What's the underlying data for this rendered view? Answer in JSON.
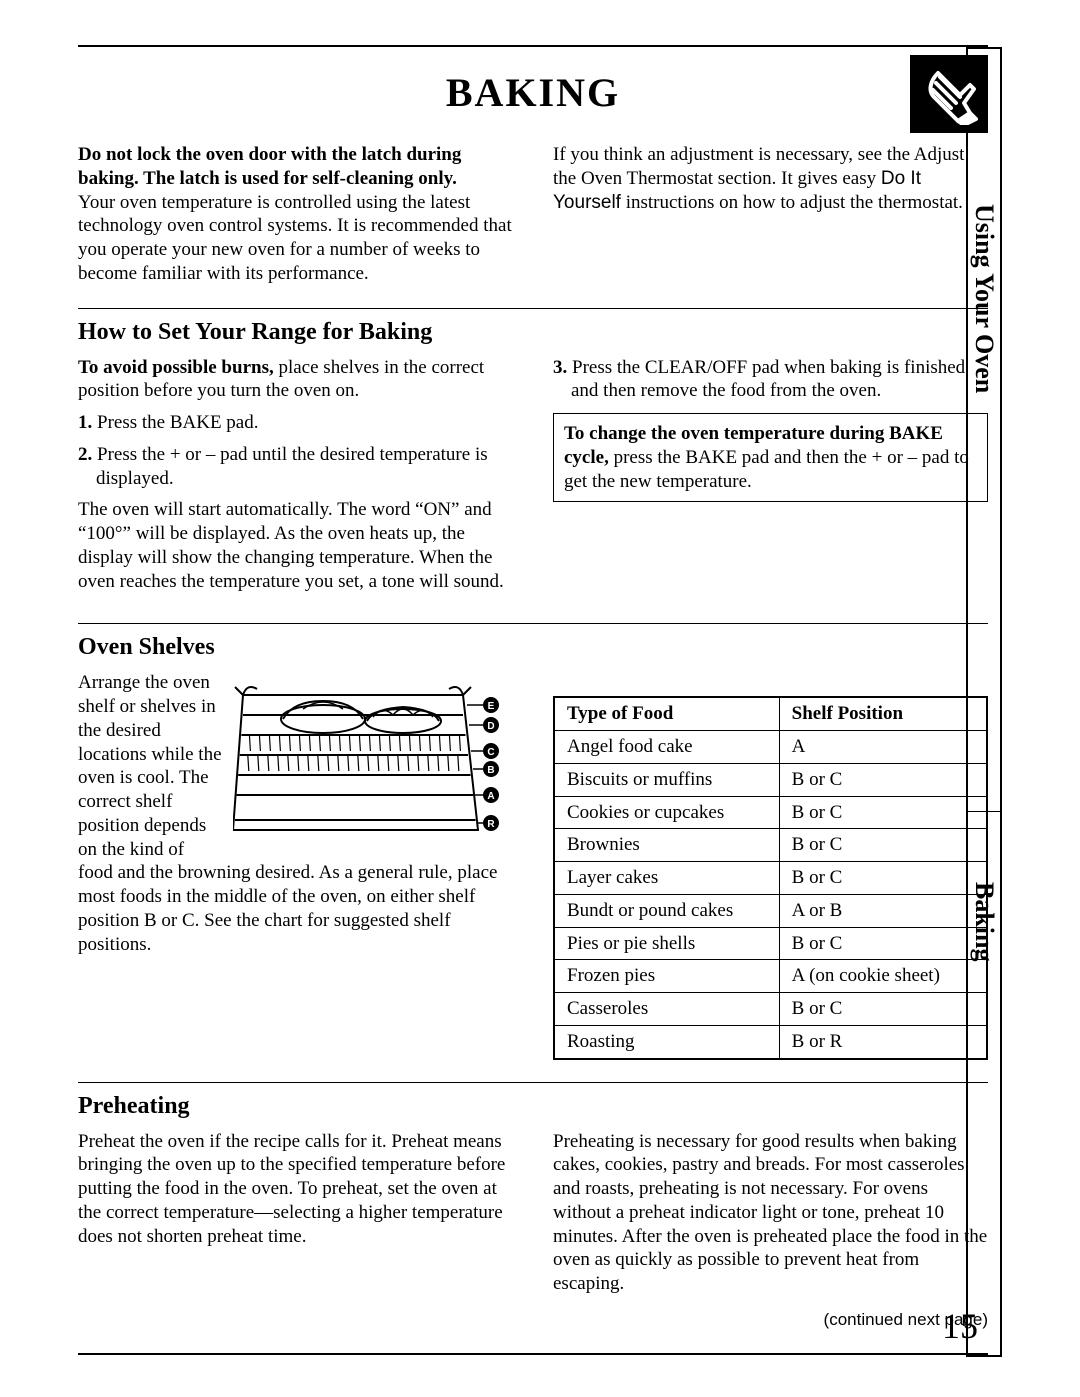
{
  "title": "BAKING",
  "sidebar": {
    "top": "Using Your Oven",
    "bottom": "Baking"
  },
  "intro": {
    "left_bold": "Do not lock the oven door with the latch during baking. The latch is used for self-cleaning only.",
    "left_body": "Your oven temperature is controlled using the latest technology oven control systems. It is recommended that you operate your new oven for a number of weeks to become familiar with its performance.",
    "right_pre": "If you think an adjustment is necessary, see the Adjust the Oven Thermostat section. It gives easy ",
    "right_sans": "Do It Yourself",
    "right_post": " instructions on how to adjust the thermostat."
  },
  "howto": {
    "heading": "How to Set Your Range for Baking",
    "lead_bold": "To avoid possible burns,",
    "lead_rest": " place shelves in the correct position before you turn the oven on.",
    "step1_pre": "1.",
    "step1": " Press the BAKE pad.",
    "step2_pre": "2.",
    "step2": " Press the + or – pad until the desired temperature is displayed.",
    "autostart": "The oven will start automatically. The word “ON” and “100°” will be displayed. As the oven heats up, the display will show the changing temperature. When the oven reaches the temperature you set, a tone will sound.",
    "step3_pre": "3.",
    "step3": " Press the CLEAR/OFF pad when baking is finished and then remove the food from the oven.",
    "tip_bold": "To change the oven temperature during BAKE cycle,",
    "tip_rest": " press the BAKE pad and then the + or – pad to get the new temperature."
  },
  "shelves": {
    "heading": "Oven Shelves",
    "body": "Arrange the oven shelf or shelves in the desired locations while the oven is cool. The correct shelf position depends on the kind of food and the browning desired. As a general rule, place most foods in the middle of the oven, on either shelf position B or C. See the chart for suggested shelf positions.",
    "labels": [
      "E",
      "D",
      "C",
      "B",
      "A",
      "R"
    ],
    "table": {
      "col1": "Type of Food",
      "col2": "Shelf Position",
      "rows": [
        [
          "Angel food cake",
          "A"
        ],
        [
          "Biscuits or muffins",
          "B or C"
        ],
        [
          "Cookies or cupcakes",
          "B or C"
        ],
        [
          "Brownies",
          "B or C"
        ],
        [
          "Layer cakes",
          "B or C"
        ],
        [
          "Bundt or pound cakes",
          "A or B"
        ],
        [
          "Pies or pie shells",
          "B or C"
        ],
        [
          "Frozen pies",
          "A (on cookie sheet)"
        ],
        [
          "Casseroles",
          "B or C"
        ],
        [
          "Roasting",
          "B or R"
        ]
      ]
    }
  },
  "preheat": {
    "heading": "Preheating",
    "left": "Preheat the oven if the recipe calls for it. Preheat means bringing the oven up to the specified temperature before putting the food in the oven. To preheat, set the oven at the correct temperature—selecting a higher temperature does not shorten preheat time.",
    "right": "Preheating is necessary for good results when baking cakes, cookies, pastry and breads. For most casseroles and roasts, preheating is not necessary. For ovens without a preheat indicator light or tone, preheat 10 minutes. After the oven is preheated place the food in the oven as quickly as possible to prevent heat from escaping."
  },
  "continued": "(continued next page)",
  "page_number": "15"
}
